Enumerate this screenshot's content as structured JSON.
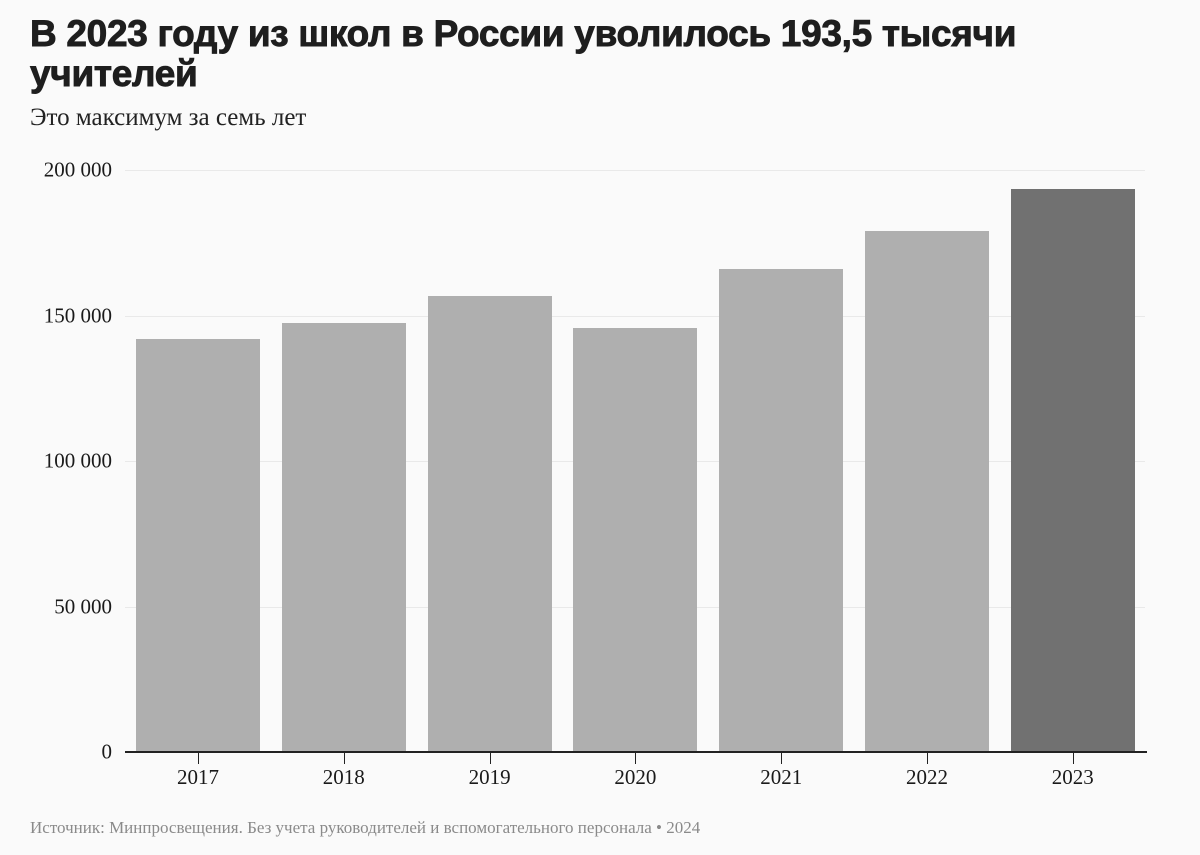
{
  "header": {
    "title": "В 2023 году из школ в России уволилось 193,5 тысячи учителей",
    "subtitle": "Это максимум за семь лет"
  },
  "footer": {
    "source": "Источник: Минпросвещения. Без учета руководителей и вспомогательного персонала • 2024"
  },
  "colors": {
    "bar_default": "#afafaf",
    "bar_highlight": "#717171",
    "background": "#fafafa",
    "gridline": "#e9e9e9"
  },
  "chart_data": {
    "type": "bar",
    "title": "В 2023 году из школ в России уволилось 193,5 тысячи учителей",
    "subtitle": "Это максимум за семь лет",
    "xlabel": "",
    "ylabel": "",
    "categories": [
      "2017",
      "2018",
      "2019",
      "2020",
      "2021",
      "2022",
      "2023"
    ],
    "values": [
      141900,
      147400,
      156700,
      145700,
      166000,
      179000,
      193500
    ],
    "highlight_index": 6,
    "ylim": [
      0,
      200000
    ],
    "yticks": [
      0,
      50000,
      100000,
      150000,
      200000
    ],
    "ytick_labels": [
      "0",
      "50 000",
      "100 000",
      "150 000",
      "200 000"
    ],
    "grid": true,
    "legend": null,
    "source": "Источник: Минпросвещения. Без учета руководителей и вспомогательного персонала • 2024"
  }
}
